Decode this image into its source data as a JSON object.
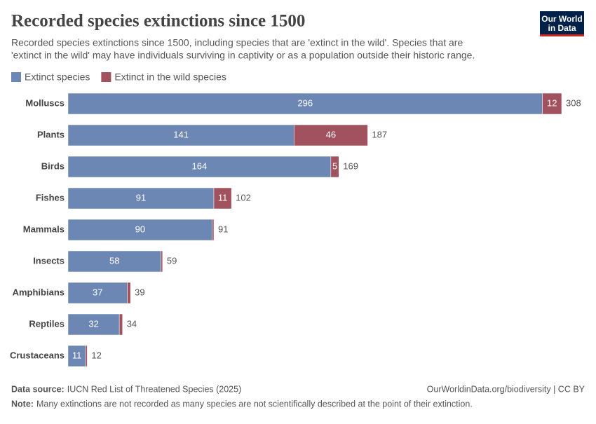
{
  "chart_data": {
    "type": "stacked-bar-horizontal",
    "title": "Recorded species extinctions since 1500",
    "subtitle": [
      "Recorded species extinctions since 1500, including species that are 'extinct in the wild'. Species that are",
      "'extinct in the wild' may have individuals surviving in captivity or as a population outside their historic range."
    ],
    "categories": [
      "Molluscs",
      "Plants",
      "Birds",
      "Fishes",
      "Mammals",
      "Insects",
      "Amphibians",
      "Reptiles",
      "Crustaceans"
    ],
    "series": [
      {
        "name": "Extinct species",
        "color": "#6d87b4",
        "values": [
          296,
          141,
          164,
          91,
          90,
          58,
          37,
          32,
          11
        ]
      },
      {
        "name": "Extinct in the wild species",
        "color": "#a2525e",
        "values": [
          12,
          46,
          5,
          11,
          1,
          1,
          2,
          2,
          1
        ]
      }
    ],
    "totals": [
      308,
      187,
      169,
      102,
      91,
      59,
      39,
      34,
      12
    ],
    "source": {
      "label": "Data source:",
      "text": "IUCN Red List of Threatened Species (2025)"
    },
    "credit": "OurWorldinData.org/biodiversity | CC BY",
    "note": {
      "label": "Note:",
      "text": "Many extinctions are not recorded as many species are not scientifically described at the point of their extinction."
    },
    "logo": [
      "Our World",
      "in Data"
    ]
  }
}
